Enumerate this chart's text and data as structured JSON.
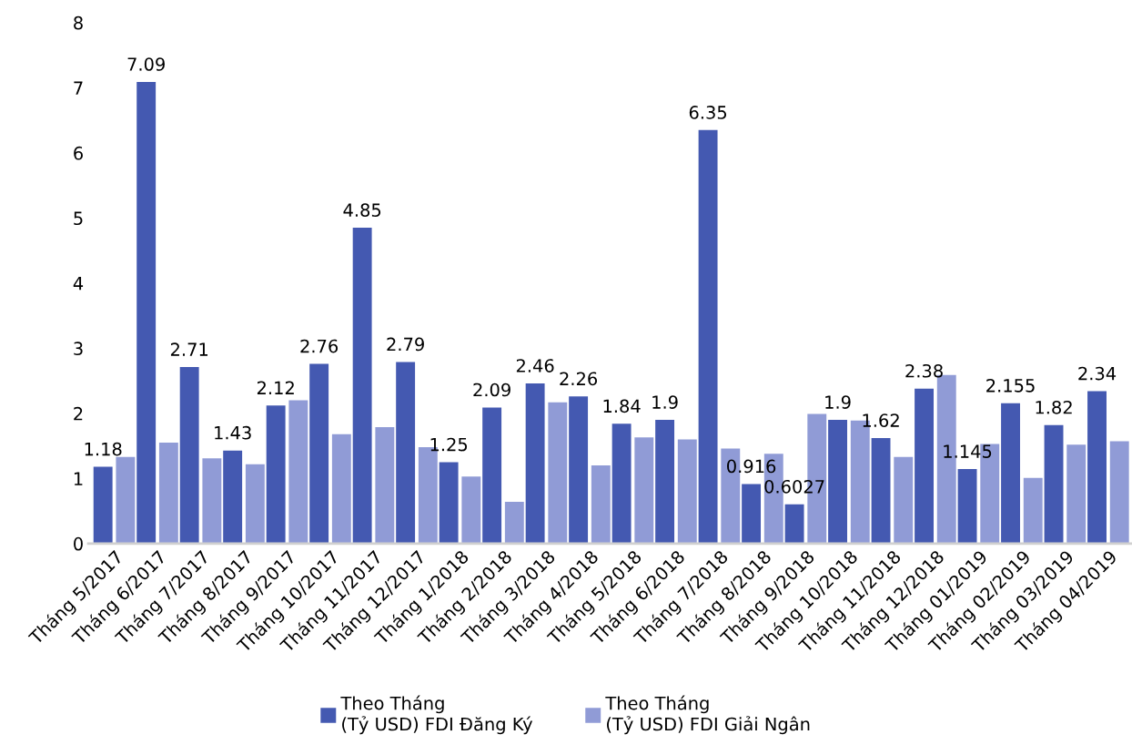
{
  "chart_data": {
    "type": "bar",
    "categories": [
      "Tháng 5/2017",
      "Tháng 6/2017",
      "Tháng 7/2017",
      "Tháng 8/2017",
      "Tháng 9/2017",
      "Tháng 10/2017",
      "Tháng 11/2017",
      "Tháng 12/2017",
      "Tháng 1/2018",
      "Tháng 2/2018",
      "Tháng 3/2018",
      "Tháng 4/2018",
      "Tháng 5/2018",
      "Tháng 6/2018",
      "Tháng 7/2018",
      "Tháng 8/2018",
      "Tháng 9/2018",
      "Tháng 10/2018",
      "Tháng 11/2018",
      "Tháng 12/2018",
      "Tháng 01/2019",
      "Tháng 02/2019",
      "Tháng 03/2019",
      "Tháng 04/2019"
    ],
    "series": [
      {
        "name": "Theo Tháng\n(Tỷ USD) FDI Đăng Ký",
        "color": "#4459b1",
        "values": [
          1.18,
          7.09,
          2.71,
          1.43,
          2.12,
          2.76,
          4.85,
          2.79,
          1.25,
          2.09,
          2.46,
          2.26,
          1.84,
          1.9,
          6.35,
          0.916,
          0.6027,
          1.9,
          1.62,
          2.38,
          1.145,
          2.155,
          1.82,
          2.34
        ],
        "value_labels": [
          "1.18",
          "7.09",
          "2.71",
          "1.43",
          "2.12",
          "2.76",
          "4.85",
          "2.79",
          "1.25",
          "2.09",
          "2.46",
          "2.26",
          "1.84",
          "1.9",
          "6.35",
          "0.916",
          "0.6027",
          "1.9",
          "1.62",
          "2.38",
          "1.145",
          "2.155",
          "1.82",
          "2.34"
        ]
      },
      {
        "name": "Theo Tháng\n(Tỷ USD) FDI Giải Ngân",
        "color": "#909bd6",
        "values": [
          1.33,
          1.55,
          1.31,
          1.22,
          2.2,
          1.68,
          1.79,
          1.48,
          1.03,
          0.64,
          2.17,
          1.2,
          1.63,
          1.6,
          1.46,
          1.38,
          1.99,
          1.89,
          1.33,
          2.59,
          1.53,
          1.01,
          1.52,
          1.57
        ]
      }
    ],
    "ylim": [
      0,
      8
    ],
    "yticks": [
      0,
      1,
      2,
      3,
      4,
      5,
      6,
      7,
      8
    ],
    "grid": false,
    "legend": "bottom"
  }
}
